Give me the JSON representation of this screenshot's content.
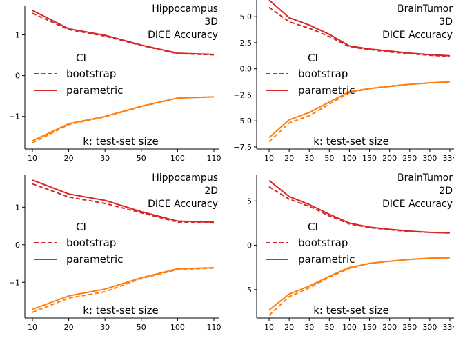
{
  "chart_data": [
    {
      "type": "line",
      "title": [
        "Hippocampus",
        "3D",
        "DICE Accuracy"
      ],
      "xlabel": "k: test-set size",
      "x_ticks": [
        "10",
        "20",
        "30",
        "50",
        "100",
        "110"
      ],
      "y_ticks": [
        -1,
        0,
        1
      ],
      "ylim": [
        -1.8,
        1.72
      ],
      "legend": {
        "title": "CI",
        "entries": [
          "bootstrap",
          "parametric"
        ],
        "placement": "center-left"
      },
      "series": [
        {
          "name": "parametric",
          "style": "solid",
          "color": "#d62728",
          "values": [
            1.6,
            1.15,
            0.99,
            0.75,
            0.55,
            0.52
          ]
        },
        {
          "name": "bootstrap",
          "style": "dashed",
          "color": "#d62728",
          "values": [
            1.53,
            1.13,
            0.97,
            0.74,
            0.54,
            0.51
          ]
        },
        {
          "name": "parametric",
          "style": "solid",
          "color": "#ff7f0e",
          "values": [
            -1.6,
            -1.18,
            -1.0,
            -0.75,
            -0.55,
            -0.52
          ]
        },
        {
          "name": "bootstrap",
          "style": "dashed",
          "color": "#ff7f0e",
          "values": [
            -1.65,
            -1.2,
            -1.01,
            -0.76,
            -0.55,
            -0.52
          ]
        }
      ]
    },
    {
      "type": "line",
      "title": [
        "BrainTumor",
        "3D",
        "DICE Accuracy"
      ],
      "xlabel": "k: test-set size",
      "x_ticks": [
        "10",
        "20",
        "30",
        "50",
        "100",
        "150",
        "200",
        "250",
        "300",
        "334"
      ],
      "y_ticks": [
        -7.5,
        -5.0,
        -2.5,
        0.0,
        2.5,
        5.0
      ],
      "y_tick_labels": [
        "−7.5",
        "−5.0",
        "−2.5",
        "0.0",
        "2.5",
        "5.0"
      ],
      "ylim": [
        -7.7,
        6.6
      ],
      "legend": {
        "title": "CI",
        "entries": [
          "bootstrap",
          "parametric"
        ],
        "placement": "center-left"
      },
      "series": [
        {
          "name": "parametric",
          "style": "solid",
          "color": "#d62728",
          "values": [
            6.6,
            4.9,
            4.2,
            3.3,
            2.2,
            1.9,
            1.7,
            1.5,
            1.35,
            1.25
          ]
        },
        {
          "name": "bootstrap",
          "style": "dashed",
          "color": "#d62728",
          "values": [
            5.9,
            4.5,
            3.9,
            3.1,
            2.1,
            1.85,
            1.6,
            1.45,
            1.3,
            1.2
          ]
        },
        {
          "name": "parametric",
          "style": "solid",
          "color": "#ff7f0e",
          "values": [
            -6.6,
            -4.9,
            -4.2,
            -3.2,
            -2.2,
            -1.9,
            -1.7,
            -1.5,
            -1.35,
            -1.25
          ]
        },
        {
          "name": "bootstrap",
          "style": "dashed",
          "color": "#ff7f0e",
          "values": [
            -7.0,
            -5.2,
            -4.5,
            -3.4,
            -2.3,
            -1.9,
            -1.65,
            -1.5,
            -1.35,
            -1.25
          ]
        }
      ]
    },
    {
      "type": "line",
      "title": [
        "Hippocampus",
        "2D",
        "DICE Accuracy"
      ],
      "xlabel": "k: test-set size",
      "x_ticks": [
        "10",
        "20",
        "30",
        "50",
        "100",
        "110"
      ],
      "y_ticks": [
        -1,
        0,
        1
      ],
      "ylim": [
        -1.95,
        1.85
      ],
      "legend": {
        "title": "CI",
        "entries": [
          "bootstrap",
          "parametric"
        ],
        "placement": "center-left"
      },
      "series": [
        {
          "name": "parametric",
          "style": "solid",
          "color": "#d62728",
          "values": [
            1.72,
            1.35,
            1.18,
            0.88,
            0.63,
            0.6
          ]
        },
        {
          "name": "bootstrap",
          "style": "dashed",
          "color": "#d62728",
          "values": [
            1.62,
            1.27,
            1.1,
            0.85,
            0.6,
            0.58
          ]
        },
        {
          "name": "parametric",
          "style": "solid",
          "color": "#ff7f0e",
          "values": [
            -1.72,
            -1.36,
            -1.18,
            -0.88,
            -0.64,
            -0.61
          ]
        },
        {
          "name": "bootstrap",
          "style": "dashed",
          "color": "#ff7f0e",
          "values": [
            -1.8,
            -1.42,
            -1.25,
            -0.9,
            -0.66,
            -0.62
          ]
        }
      ]
    },
    {
      "type": "line",
      "title": [
        "BrainTumor",
        "2D",
        "DICE Accuracy"
      ],
      "xlabel": "k: test-set size",
      "x_ticks": [
        "10",
        "20",
        "30",
        "50",
        "100",
        "150",
        "200",
        "250",
        "300",
        "334"
      ],
      "y_ticks": [
        -5,
        0,
        5
      ],
      "y_tick_labels": [
        "−5",
        "0",
        "5"
      ],
      "ylim": [
        -8.2,
        7.9
      ],
      "legend": {
        "title": "CI",
        "entries": [
          "bootstrap",
          "parametric"
        ],
        "placement": "center-left"
      },
      "series": [
        {
          "name": "parametric",
          "style": "solid",
          "color": "#d62728",
          "values": [
            7.3,
            5.5,
            4.6,
            3.5,
            2.5,
            2.05,
            1.8,
            1.6,
            1.45,
            1.4
          ]
        },
        {
          "name": "bootstrap",
          "style": "dashed",
          "color": "#d62728",
          "values": [
            6.6,
            5.2,
            4.4,
            3.3,
            2.4,
            2.0,
            1.75,
            1.55,
            1.45,
            1.38
          ]
        },
        {
          "name": "parametric",
          "style": "solid",
          "color": "#ff7f0e",
          "values": [
            -7.3,
            -5.5,
            -4.6,
            -3.5,
            -2.5,
            -2.05,
            -1.8,
            -1.6,
            -1.45,
            -1.4
          ]
        },
        {
          "name": "bootstrap",
          "style": "dashed",
          "color": "#ff7f0e",
          "values": [
            -7.9,
            -5.8,
            -4.8,
            -3.6,
            -2.6,
            -2.05,
            -1.8,
            -1.6,
            -1.45,
            -1.4
          ]
        }
      ]
    }
  ]
}
